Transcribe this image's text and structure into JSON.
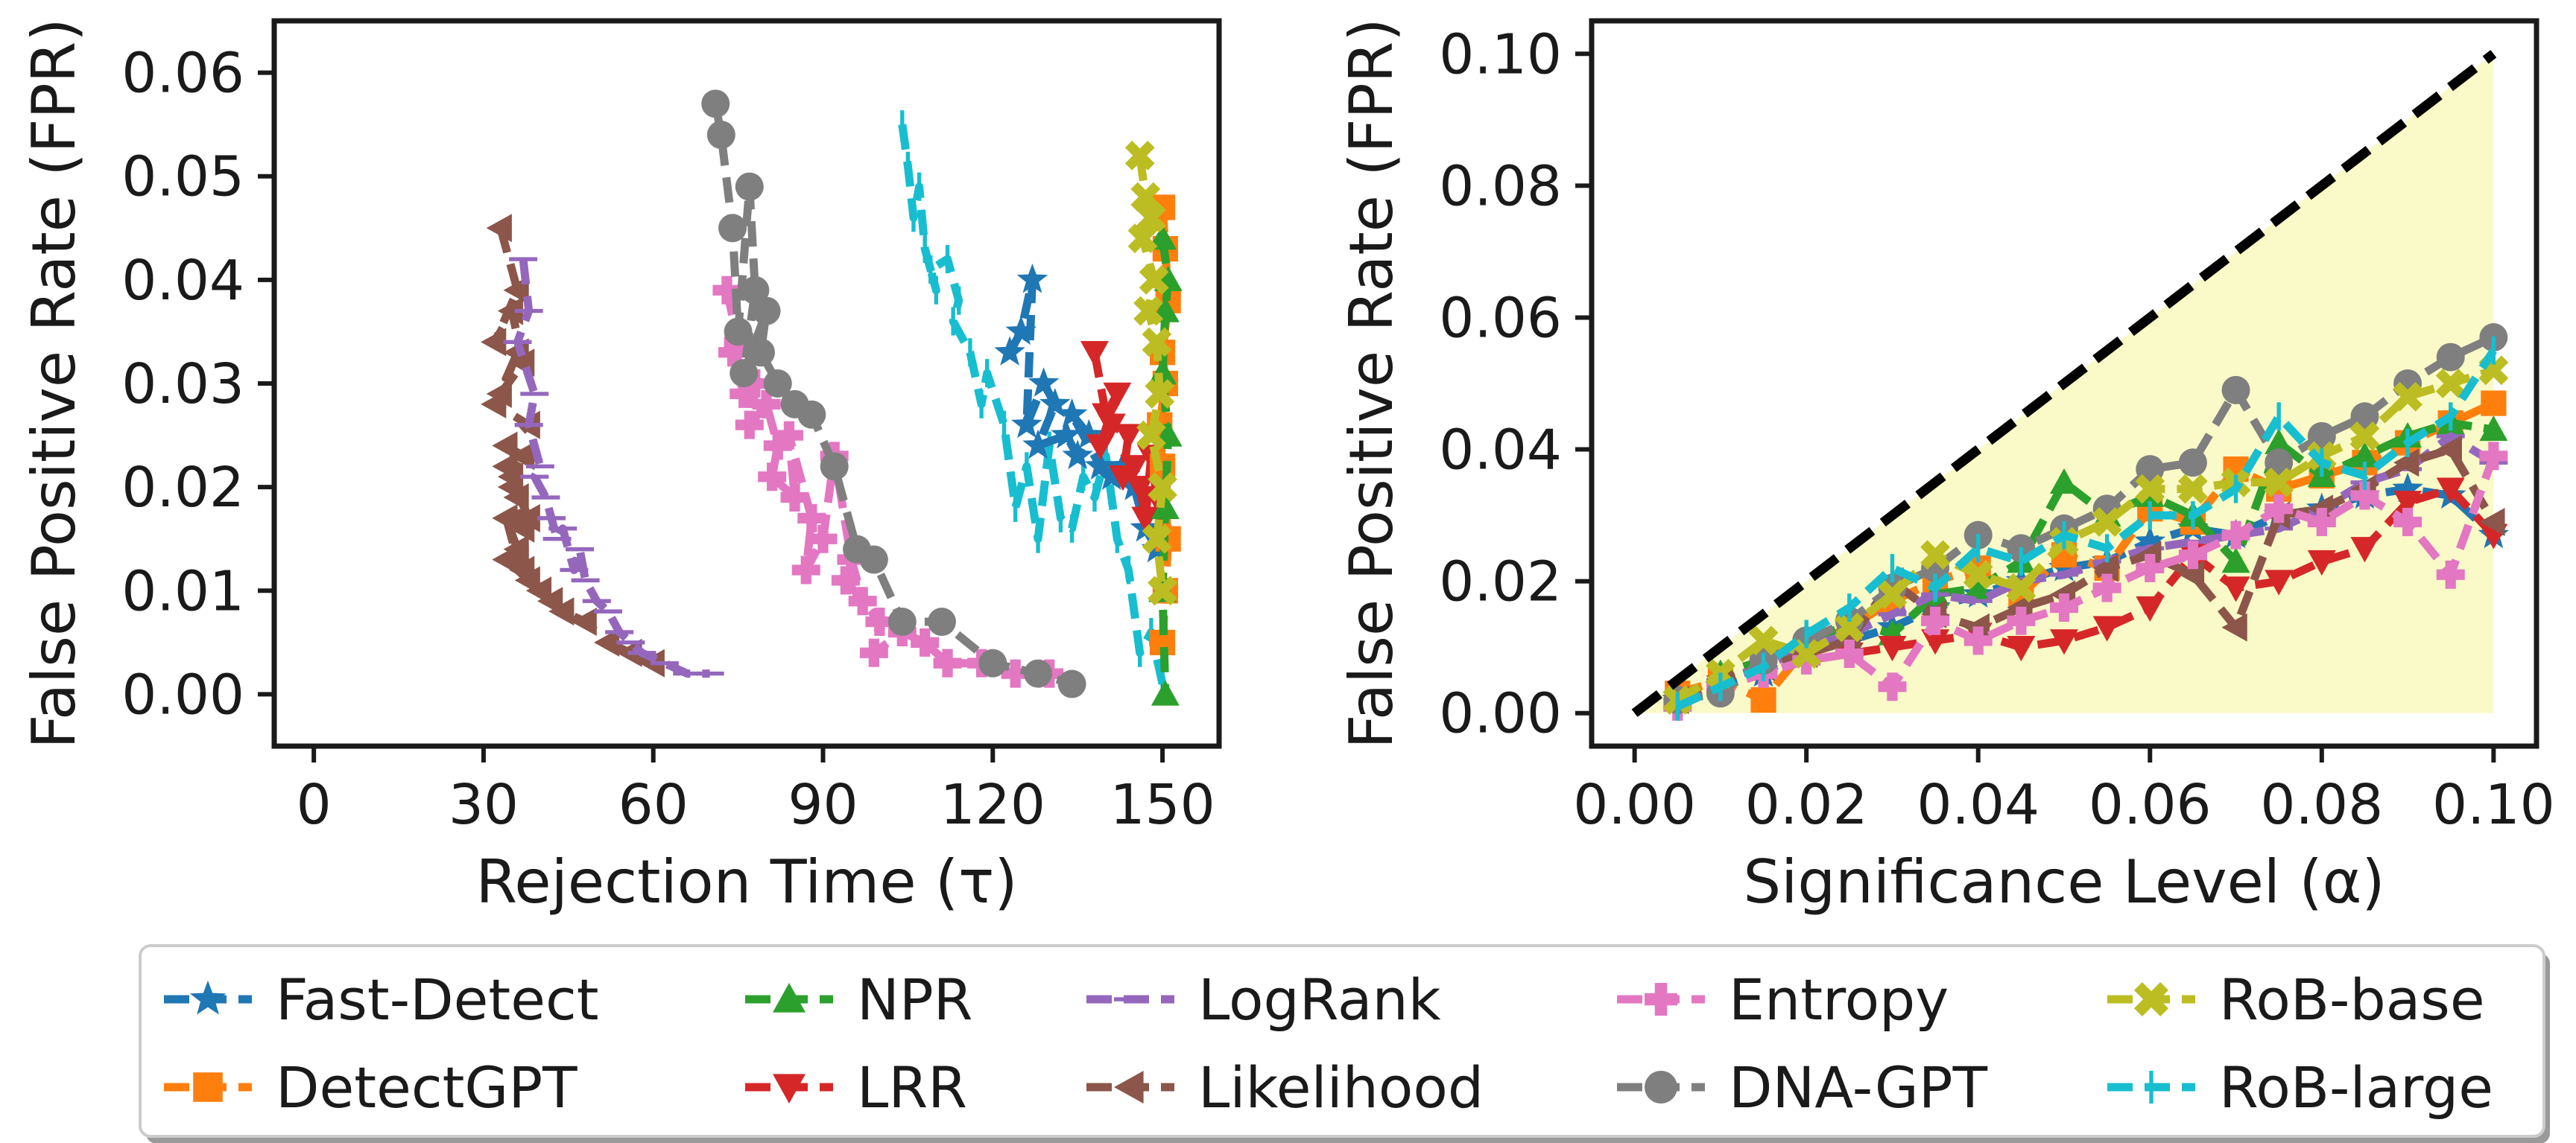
{
  "colors": {
    "Fast-Detect": "#1f77b4",
    "DetectGPT": "#ff7f0e",
    "NPR": "#2ca02c",
    "LRR": "#d62728",
    "LogRank": "#9467bd",
    "Likelihood": "#8c564b",
    "Entropy": "#e377c2",
    "DNA-GPT": "#7f7f7f",
    "RoB-base": "#bcbd22",
    "RoB-large": "#17becf",
    "reference_line": "#000000",
    "feasible_region": "#fafac8"
  },
  "legend": {
    "entries": [
      {
        "label": "Fast-Detect",
        "marker": "star",
        "color": "#1f77b4"
      },
      {
        "label": "DetectGPT",
        "marker": "square",
        "color": "#ff7f0e"
      },
      {
        "label": "NPR",
        "marker": "triangle-up",
        "color": "#2ca02c"
      },
      {
        "label": "LRR",
        "marker": "triangle-down",
        "color": "#d62728"
      },
      {
        "label": "LogRank",
        "marker": "hline",
        "color": "#9467bd"
      },
      {
        "label": "Likelihood",
        "marker": "triangle-left",
        "color": "#8c564b"
      },
      {
        "label": "Entropy",
        "marker": "plus",
        "color": "#e377c2"
      },
      {
        "label": "DNA-GPT",
        "marker": "circle",
        "color": "#7f7f7f"
      },
      {
        "label": "RoB-base",
        "marker": "x",
        "color": "#bcbd22"
      },
      {
        "label": "RoB-large",
        "marker": "vline",
        "color": "#17becf"
      }
    ],
    "placement": "bottom-center",
    "columns": 5
  },
  "chart_data": [
    {
      "type": "line",
      "title": "",
      "xlabel": "Rejection Time (τ)",
      "ylabel": "False Positive Rate (FPR)",
      "xlim": [
        -7,
        160
      ],
      "ylim": [
        -0.005,
        0.065
      ],
      "xticks": [
        0,
        30,
        60,
        90,
        120,
        150
      ],
      "xtick_labels": [
        "0",
        "30",
        "60",
        "90",
        "120",
        "150"
      ],
      "yticks": [
        0,
        0.01,
        0.02,
        0.03,
        0.04,
        0.05,
        0.06
      ],
      "ytick_labels": [
        "0.00",
        "0.01",
        "0.02",
        "0.03",
        "0.04",
        "0.05",
        "0.06"
      ],
      "series": [
        {
          "name": "Likelihood",
          "x": [
            33,
            36,
            32,
            35,
            37,
            33,
            36,
            32,
            38,
            34,
            37,
            35,
            36,
            34,
            38,
            35,
            37,
            36,
            34,
            36,
            37,
            38,
            34,
            40,
            42,
            44,
            48,
            52,
            56,
            60
          ],
          "y": [
            0.045,
            0.039,
            0.034,
            0.037,
            0.032,
            0.029,
            0.033,
            0.028,
            0.026,
            0.024,
            0.023,
            0.021,
            0.019,
            0.022,
            0.017,
            0.02,
            0.016,
            0.014,
            0.017,
            0.013,
            0.012,
            0.011,
            0.013,
            0.01,
            0.009,
            0.008,
            0.007,
            0.005,
            0.004,
            0.003
          ]
        },
        {
          "name": "LogRank",
          "x": [
            37,
            38,
            36,
            39,
            38,
            40,
            39,
            41,
            42,
            43,
            44,
            46,
            47,
            48,
            50,
            52,
            54,
            56,
            58,
            62,
            66,
            70
          ],
          "y": [
            0.042,
            0.037,
            0.034,
            0.029,
            0.026,
            0.022,
            0.021,
            0.019,
            0.017,
            0.015,
            0.016,
            0.012,
            0.014,
            0.011,
            0.009,
            0.008,
            0.006,
            0.005,
            0.004,
            0.003,
            0.002,
            0.002
          ]
        },
        {
          "name": "Entropy",
          "x": [
            73,
            75,
            76,
            74,
            78,
            77,
            80,
            82,
            81,
            85,
            84,
            88,
            87,
            90,
            92,
            95,
            97,
            94,
            100,
            99,
            104,
            108,
            112,
            118,
            124,
            130
          ],
          "y": [
            0.039,
            0.034,
            0.029,
            0.033,
            0.03,
            0.026,
            0.028,
            0.024,
            0.021,
            0.019,
            0.025,
            0.017,
            0.012,
            0.015,
            0.023,
            0.013,
            0.009,
            0.011,
            0.007,
            0.004,
            0.006,
            0.005,
            0.003,
            0.003,
            0.002,
            0.002
          ]
        },
        {
          "name": "DNA-GPT",
          "x": [
            71,
            72,
            74,
            75,
            77,
            78,
            76,
            80,
            79,
            82,
            85,
            88,
            92,
            96,
            99,
            104,
            111,
            120,
            128,
            134
          ],
          "y": [
            0.057,
            0.054,
            0.045,
            0.035,
            0.049,
            0.039,
            0.031,
            0.037,
            0.033,
            0.03,
            0.028,
            0.027,
            0.022,
            0.014,
            0.013,
            0.007,
            0.007,
            0.003,
            0.002,
            0.001
          ]
        },
        {
          "name": "RoB-large",
          "x": [
            104,
            105,
            106,
            107,
            108,
            110,
            109,
            112,
            114,
            113,
            116,
            118,
            119,
            122,
            124,
            126,
            128,
            130,
            132,
            134,
            136,
            138,
            140,
            142,
            144,
            146,
            148,
            150
          ],
          "y": [
            0.055,
            0.051,
            0.046,
            0.049,
            0.043,
            0.039,
            0.041,
            0.042,
            0.038,
            0.036,
            0.033,
            0.028,
            0.031,
            0.026,
            0.018,
            0.022,
            0.015,
            0.024,
            0.017,
            0.016,
            0.021,
            0.019,
            0.023,
            0.015,
            0.012,
            0.004,
            0.006,
            0.001
          ]
        },
        {
          "name": "Fast-Detect",
          "x": [
            123,
            125,
            127,
            126,
            129,
            131,
            128,
            133,
            135,
            137,
            134,
            139,
            141,
            143,
            145,
            147,
            149
          ],
          "y": [
            0.033,
            0.035,
            0.04,
            0.026,
            0.03,
            0.028,
            0.024,
            0.025,
            0.023,
            0.025,
            0.027,
            0.022,
            0.021,
            0.022,
            0.02,
            0.016,
            0.014
          ]
        },
        {
          "name": "LRR",
          "x": [
            138,
            140,
            142,
            139,
            141,
            144,
            143,
            145,
            146,
            147,
            148,
            149,
            150
          ],
          "y": [
            0.033,
            0.027,
            0.029,
            0.024,
            0.026,
            0.025,
            0.021,
            0.022,
            0.02,
            0.017,
            0.023,
            0.019,
            0.015
          ]
        },
        {
          "name": "DetectGPT",
          "x": [
            150,
            150.5,
            151,
            150,
            150.5,
            149.5,
            150,
            151,
            150.5,
            150
          ],
          "y": [
            0.047,
            0.043,
            0.038,
            0.033,
            0.03,
            0.026,
            0.022,
            0.015,
            0.01,
            0.005
          ]
        },
        {
          "name": "NPR",
          "x": [
            150,
            151,
            150.5,
            150,
            151,
            150.5,
            150,
            150.5
          ],
          "y": [
            0.044,
            0.04,
            0.037,
            0.031,
            0.025,
            0.018,
            0.01,
            0.0
          ]
        },
        {
          "name": "RoB-base",
          "x": [
            146,
            147,
            148,
            146.5,
            148.5,
            147.5,
            149,
            149.5,
            148,
            150,
            149,
            150
          ],
          "y": [
            0.052,
            0.048,
            0.046,
            0.044,
            0.04,
            0.037,
            0.034,
            0.029,
            0.025,
            0.02,
            0.015,
            0.01
          ]
        }
      ]
    },
    {
      "type": "line",
      "title": "",
      "xlabel": "Significance Level (α)",
      "ylabel": "False Positive Rate (FPR)",
      "xlim": [
        -0.005,
        0.105
      ],
      "ylim": [
        -0.005,
        0.105
      ],
      "xticks": [
        0,
        0.02,
        0.04,
        0.06,
        0.08,
        0.1
      ],
      "xtick_labels": [
        "0.00",
        "0.02",
        "0.04",
        "0.06",
        "0.08",
        "0.10"
      ],
      "yticks": [
        0,
        0.02,
        0.04,
        0.06,
        0.08,
        0.1
      ],
      "ytick_labels": [
        "0.00",
        "0.02",
        "0.04",
        "0.06",
        "0.08",
        "0.10"
      ],
      "reference_line": {
        "x": [
          0,
          0.1
        ],
        "y": [
          0,
          0.1
        ],
        "style": "dashed"
      },
      "shaded_region": {
        "x": [
          0,
          0.1
        ],
        "y_lower": [
          0,
          0
        ],
        "y_upper": [
          0,
          0.1
        ]
      },
      "x": [
        0.005,
        0.01,
        0.015,
        0.02,
        0.025,
        0.03,
        0.035,
        0.04,
        0.045,
        0.05,
        0.055,
        0.06,
        0.065,
        0.07,
        0.075,
        0.08,
        0.085,
        0.09,
        0.095,
        0.1
      ],
      "series": [
        {
          "name": "Fast-Detect",
          "y": [
            0.002,
            0.004,
            0.006,
            0.009,
            0.011,
            0.013,
            0.016,
            0.018,
            0.02,
            0.022,
            0.023,
            0.026,
            0.028,
            0.027,
            0.03,
            0.031,
            0.033,
            0.034,
            0.033,
            0.027
          ]
        },
        {
          "name": "DetectGPT",
          "y": [
            0.003,
            0.005,
            0.002,
            0.01,
            0.013,
            0.017,
            0.02,
            0.022,
            0.018,
            0.024,
            0.022,
            0.031,
            0.029,
            0.037,
            0.034,
            0.036,
            0.038,
            0.041,
            0.044,
            0.047
          ]
        },
        {
          "name": "NPR",
          "y": [
            0.002,
            0.006,
            0.008,
            0.01,
            0.014,
            0.012,
            0.018,
            0.019,
            0.023,
            0.035,
            0.03,
            0.033,
            0.03,
            0.023,
            0.041,
            0.036,
            0.039,
            0.042,
            0.044,
            0.043
          ]
        },
        {
          "name": "LRR",
          "y": [
            0.001,
            0.004,
            0.006,
            0.008,
            0.009,
            0.01,
            0.011,
            0.012,
            0.01,
            0.011,
            0.013,
            0.016,
            0.024,
            0.019,
            0.02,
            0.023,
            0.025,
            0.032,
            0.034,
            0.027
          ]
        },
        {
          "name": "LogRank",
          "y": [
            0.001,
            0.005,
            0.007,
            0.01,
            0.012,
            0.015,
            0.018,
            0.017,
            0.02,
            0.021,
            0.023,
            0.025,
            0.026,
            0.027,
            0.028,
            0.031,
            0.035,
            0.037,
            0.042,
            0.038
          ]
        },
        {
          "name": "Likelihood",
          "y": [
            0.002,
            0.005,
            0.007,
            0.009,
            0.011,
            0.02,
            0.015,
            0.013,
            0.016,
            0.018,
            0.022,
            0.024,
            0.021,
            0.013,
            0.03,
            0.031,
            0.034,
            0.038,
            0.04,
            0.029
          ]
        },
        {
          "name": "Entropy",
          "y": [
            0.001,
            0.004,
            0.006,
            0.008,
            0.009,
            0.004,
            0.014,
            0.011,
            0.014,
            0.016,
            0.019,
            0.022,
            0.024,
            0.027,
            0.031,
            0.029,
            0.033,
            0.029,
            0.021,
            0.039
          ]
        },
        {
          "name": "DNA-GPT",
          "y": [
            0.002,
            0.003,
            0.008,
            0.011,
            0.014,
            0.019,
            0.022,
            0.027,
            0.025,
            0.028,
            0.031,
            0.037,
            0.038,
            0.049,
            0.038,
            0.042,
            0.045,
            0.05,
            0.054,
            0.057
          ]
        },
        {
          "name": "RoB-base",
          "y": [
            0.002,
            0.006,
            0.011,
            0.009,
            0.013,
            0.018,
            0.024,
            0.021,
            0.019,
            0.026,
            0.029,
            0.034,
            0.034,
            0.035,
            0.035,
            0.039,
            0.042,
            0.048,
            0.05,
            0.052
          ]
        },
        {
          "name": "RoB-large",
          "y": [
            0.001,
            0.004,
            0.007,
            0.012,
            0.016,
            0.022,
            0.019,
            0.025,
            0.023,
            0.027,
            0.025,
            0.03,
            0.03,
            0.034,
            0.045,
            0.038,
            0.036,
            0.041,
            0.045,
            0.055
          ]
        }
      ]
    }
  ]
}
